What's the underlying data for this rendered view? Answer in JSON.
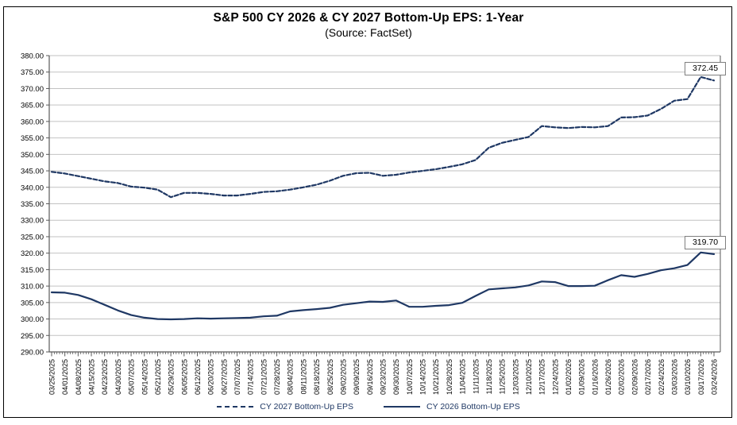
{
  "chart_data": {
    "type": "line",
    "title": "S&P 500 CY 2026 & CY 2027 Bottom-Up EPS: 1-Year",
    "subtitle": "(Source: FactSet)",
    "ylabel": "",
    "xlabel": "",
    "ylim": [
      290,
      380
    ],
    "ytick_step": 5,
    "ytick_format": "2-decimals",
    "grid": "horizontal",
    "legend_position": "bottom",
    "line_color": "#1F3864",
    "grid_color": "#c2c2c2",
    "axis_color": "#595959",
    "x_labels": [
      "03/25/2025",
      "04/01/2025",
      "04/08/2025",
      "04/15/2025",
      "04/23/2025",
      "04/30/2025",
      "05/07/2025",
      "05/14/2025",
      "05/21/2025",
      "05/29/2025",
      "06/05/2025",
      "06/12/2025",
      "06/20/2025",
      "06/27/2025",
      "07/07/2025",
      "07/14/2025",
      "07/21/2025",
      "07/28/2025",
      "08/04/2025",
      "08/11/2025",
      "08/18/2025",
      "08/25/2025",
      "09/02/2025",
      "09/09/2025",
      "09/16/2025",
      "09/23/2025",
      "09/30/2025",
      "10/07/2025",
      "10/14/2025",
      "10/21/2025",
      "10/28/2025",
      "11/04/2025",
      "11/11/2025",
      "11/18/2025",
      "11/25/2025",
      "12/03/2025",
      "12/10/2025",
      "12/17/2025",
      "12/24/2025",
      "01/02/2026",
      "01/09/2026",
      "01/16/2026",
      "01/26/2026",
      "02/02/2026",
      "02/09/2026",
      "02/17/2026",
      "02/24/2026",
      "03/03/2026",
      "03/10/2026",
      "03/17/2026",
      "03/24/2026"
    ],
    "series": [
      {
        "name": "CY 2027 Bottom-Up EPS",
        "style": "dashed",
        "end_label": "372.45",
        "values": [
          344.7,
          344.2,
          343.4,
          342.6,
          341.8,
          341.3,
          340.2,
          339.9,
          339.3,
          337.0,
          338.3,
          338.3,
          338.0,
          337.5,
          337.5,
          338.0,
          338.6,
          338.8,
          339.3,
          340.0,
          340.8,
          342.0,
          343.5,
          344.3,
          344.4,
          343.5,
          343.8,
          344.5,
          345.0,
          345.5,
          346.2,
          347.0,
          348.3,
          352.0,
          353.5,
          354.4,
          355.3,
          358.6,
          358.2,
          358.0,
          358.3,
          358.2,
          358.6,
          361.2,
          361.3,
          361.8,
          363.8,
          366.3,
          366.8,
          373.5,
          372.45
        ]
      },
      {
        "name": "CY 2026 Bottom-Up EPS",
        "style": "solid",
        "end_label": "319.70",
        "values": [
          308.1,
          308.0,
          307.3,
          306.0,
          304.3,
          302.6,
          301.2,
          300.4,
          300.0,
          299.9,
          300.0,
          300.2,
          300.1,
          300.2,
          300.3,
          300.4,
          300.8,
          301.0,
          302.3,
          302.7,
          303.0,
          303.4,
          304.3,
          304.8,
          305.3,
          305.2,
          305.6,
          303.7,
          303.7,
          304.0,
          304.2,
          304.9,
          307.0,
          309.0,
          309.3,
          309.6,
          310.2,
          311.4,
          311.2,
          310.0,
          310.0,
          310.1,
          311.8,
          313.3,
          312.8,
          313.7,
          314.8,
          315.4,
          316.4,
          320.2,
          319.7
        ]
      }
    ]
  }
}
